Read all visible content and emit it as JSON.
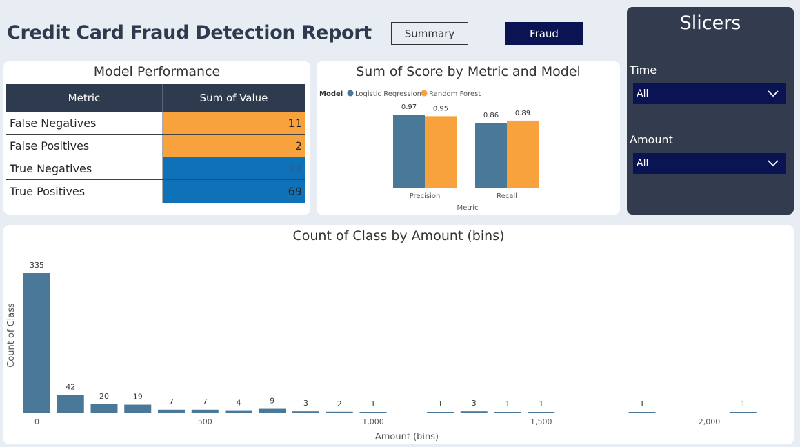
{
  "header": {
    "title": "Credit Card Fraud Detection Report",
    "summary_button": "Summary",
    "fraud_button": "Fraud"
  },
  "model_performance": {
    "title": "Model Performance",
    "columns": [
      "Metric",
      "Sum of Value"
    ],
    "rows": [
      {
        "metric": "False Negatives",
        "value": "11",
        "color": "#f8a23d",
        "text_color": "#252423"
      },
      {
        "metric": "False Positives",
        "value": "2",
        "color": "#f8a23d",
        "text_color": "#252423"
      },
      {
        "metric": "True Negatives",
        "value": "94",
        "color": "#0f72b8",
        "text_color": "#2e5f8a"
      },
      {
        "metric": "True Positives",
        "value": "69",
        "color": "#0f72b8",
        "text_color": "#252423"
      }
    ]
  },
  "slicers": {
    "title": "Slicers",
    "time_label": "Time",
    "time_value": "All",
    "amount_label": "Amount",
    "amount_value": "All"
  },
  "colors": {
    "navy": "#0b1452",
    "slate": "#2e3a4e",
    "bar_blue": "#4a7899",
    "orange": "#f8a23d",
    "table_blue": "#0f72b8"
  },
  "chart_data": [
    {
      "type": "bar",
      "title": "Sum of Score by Metric and Model",
      "legend_title": "Model",
      "legend_position": "top-left",
      "xlabel": "Metric",
      "categories": [
        "Precision",
        "Recall"
      ],
      "series": [
        {
          "name": "Logistic Regression",
          "values": [
            0.97,
            0.86
          ],
          "color": "#4a7899"
        },
        {
          "name": "Random Forest",
          "values": [
            0.95,
            0.89
          ],
          "color": "#f8a23d"
        }
      ],
      "data_labels": [
        [
          "0.97",
          "0.86"
        ],
        [
          "0.95",
          "0.89"
        ]
      ],
      "ylim": [
        0,
        1.1
      ]
    },
    {
      "type": "bar",
      "title": "Count of Class by Amount (bins)",
      "xlabel": "Amount (bins)",
      "ylabel": "Count of Class",
      "x_ticks": [
        0,
        500,
        1000,
        1500,
        2000
      ],
      "x_tick_labels": [
        "0",
        "500",
        "1,000",
        "1,500",
        "2,000"
      ],
      "bin_width": 100,
      "bins": [
        0,
        100,
        200,
        300,
        400,
        500,
        600,
        700,
        800,
        900,
        1000,
        1200,
        1300,
        1400,
        1500,
        1800,
        2100
      ],
      "values": [
        335,
        42,
        20,
        19,
        7,
        7,
        4,
        9,
        3,
        2,
        1,
        1,
        3,
        1,
        1,
        1,
        1
      ],
      "ylim": [
        0,
        345
      ],
      "grid": false
    }
  ]
}
